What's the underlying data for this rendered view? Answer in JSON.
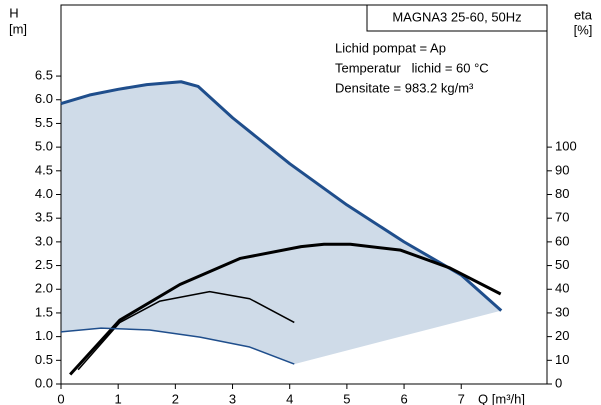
{
  "chart_data": {
    "type": "line",
    "title": "MAGNA3 25-60, 50Hz",
    "annotations": [
      "Lichid pompat = Ap",
      "Temperatur   lichid = 60 °C",
      "Densitate = 983.2 kg/m³"
    ],
    "y_label": "H",
    "y_unit": "[m]",
    "y2_label": "eta",
    "y2_unit": "[%]",
    "x_label": "Q [m³/h]",
    "xlim": [
      0,
      8.5
    ],
    "xticks": [
      0,
      1,
      2,
      3,
      4,
      5,
      6,
      7
    ],
    "ylim": [
      0,
      8
    ],
    "yticks": [
      {
        "value": 0,
        "label": "0.0"
      },
      0.5,
      {
        "value": 1,
        "label": "1.0"
      },
      1.5,
      {
        "value": 2,
        "label": "2.0"
      },
      2.5,
      {
        "value": 3,
        "label": "3.0"
      },
      3.5,
      {
        "value": 4,
        "label": "4.0"
      },
      4.5,
      {
        "value": 5,
        "label": "5.0"
      },
      5.5,
      {
        "value": 6,
        "label": "6.0"
      },
      6.5
    ],
    "y2lim": [
      0,
      160
    ],
    "y2ticks": [
      0,
      10,
      20,
      30,
      40,
      50,
      60,
      70,
      80,
      90,
      100
    ],
    "fill_color": "#cfdbe8",
    "series": [
      {
        "color": "#1f4e8c",
        "width": 3,
        "x": [
          0,
          0.5,
          1,
          1.5,
          2.1,
          2.4,
          3,
          4,
          5,
          6,
          7,
          7.7
        ],
        "values": [
          5.92,
          6.1,
          6.22,
          6.32,
          6.38,
          6.28,
          5.62,
          4.65,
          3.78,
          3.0,
          2.3,
          1.55
        ]
      },
      {
        "color": "#000000",
        "width": 3,
        "axis": "y2",
        "x": [
          0.16,
          1.03,
          2.08,
          3.13,
          4.2,
          4.6,
          5.06,
          5.94,
          6.8,
          7.69
        ],
        "values": [
          4,
          27,
          42,
          53,
          58,
          59,
          59,
          56.5,
          49,
          38
        ]
      },
      {
        "color": "#000000",
        "width": 1.5,
        "axis": "y2",
        "x": [
          0.3,
          1.03,
          1.73,
          2.6,
          3.3,
          4.08
        ],
        "values": [
          6,
          26,
          35,
          39,
          36,
          26
        ]
      },
      {
        "color": "#1f4e8c",
        "width": 1.5,
        "x": [
          0,
          0.7,
          1.55,
          2.43,
          3.3,
          4.08
        ],
        "values": [
          1.1,
          1.18,
          1.14,
          0.99,
          0.78,
          0.42
        ]
      }
    ]
  }
}
